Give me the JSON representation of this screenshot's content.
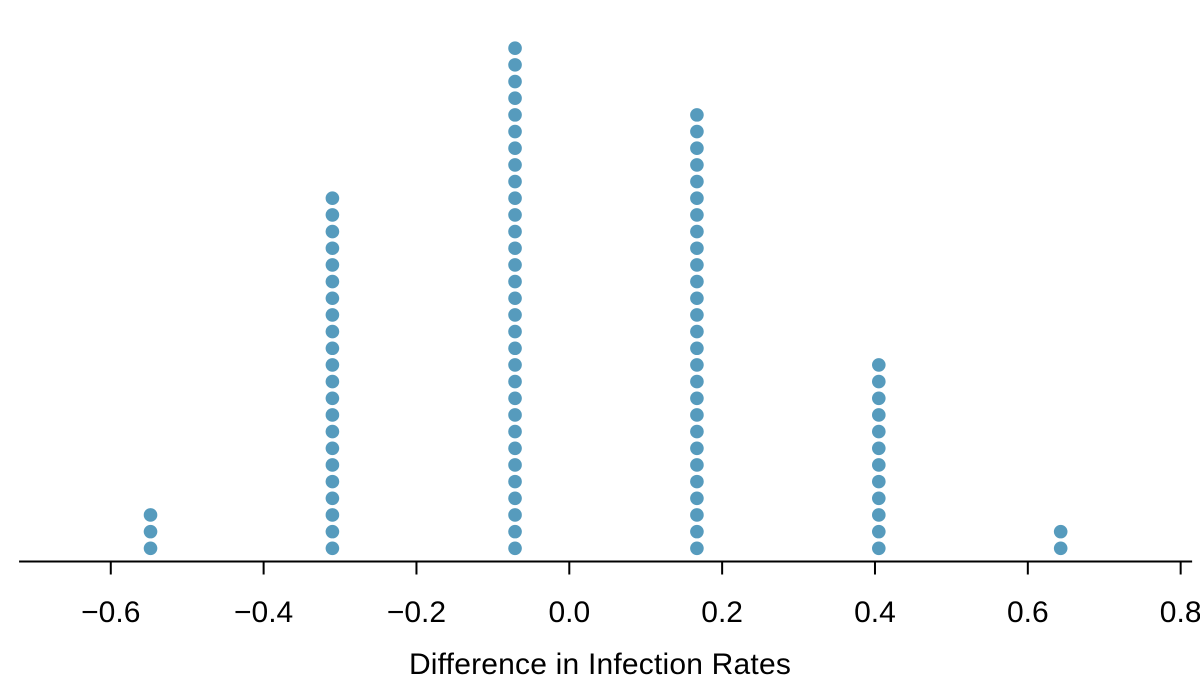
{
  "chart_data": {
    "type": "dotplot",
    "title": "",
    "xlabel": "Difference in Infection Rates",
    "x_tick_values": [
      -0.6,
      -0.4,
      -0.2,
      0.0,
      0.2,
      0.4,
      0.6,
      0.8
    ],
    "x_tick_labels": [
      "−0.6",
      "−0.4",
      "−0.2",
      "0.0",
      "0.2",
      "0.4",
      "0.6",
      "0.8"
    ],
    "xlim": [
      -0.72,
      0.815
    ],
    "grid": "off",
    "legend": "none",
    "stacks": [
      {
        "x": -0.548,
        "count": 3
      },
      {
        "x": -0.31,
        "count": 22
      },
      {
        "x": -0.071,
        "count": 31
      },
      {
        "x": 0.167,
        "count": 27
      },
      {
        "x": 0.405,
        "count": 12
      },
      {
        "x": 0.643,
        "count": 2
      }
    ],
    "dot_color": "#569BBD",
    "axis_color": "#000000",
    "tick_label_color": "#000000"
  }
}
